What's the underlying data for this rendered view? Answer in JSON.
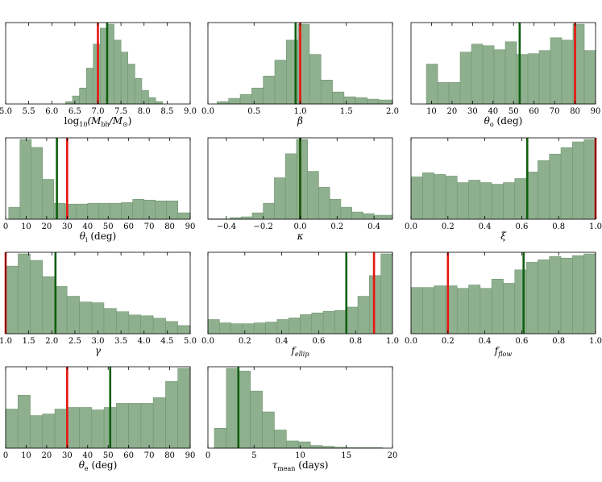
{
  "colors": {
    "bar_fill": "#8fb08f",
    "bar_edge": "#6f946f",
    "line_red": "#e8150f",
    "line_green": "#0f5f0f"
  },
  "chart_data": [
    {
      "type": "bar",
      "id": "mbh",
      "title": "",
      "xlabel": "log10(M_bh/M_sun)",
      "xlabel_parts": [
        "log",
        "10",
        "(M",
        "bh",
        "/M",
        "⊙",
        ")"
      ],
      "xlim": [
        5.0,
        9.0
      ],
      "xticks": [
        5.0,
        5.5,
        6.0,
        6.5,
        7.0,
        7.5,
        8.0,
        8.5,
        9.0
      ],
      "xtick_labels": [
        "5.0",
        "5.5",
        "6.0",
        "6.5",
        "7.0",
        "7.5",
        "8.0",
        "8.5",
        "9.0"
      ],
      "bin_edges": [
        6.3,
        6.45,
        6.6,
        6.75,
        6.9,
        7.05,
        7.2,
        7.35,
        7.5,
        7.65,
        7.8,
        7.95,
        8.1,
        8.25,
        8.4
      ],
      "values": [
        3,
        10,
        20,
        45,
        75,
        95,
        100,
        80,
        65,
        50,
        32,
        17,
        8,
        3
      ],
      "red_line": 7.0,
      "green_line": 7.2
    },
    {
      "type": "bar",
      "id": "beta",
      "xlabel": "β",
      "xlabel_parts": [
        "β"
      ],
      "xlim": [
        0.0,
        2.0
      ],
      "xticks": [
        0.0,
        0.5,
        1.0,
        1.5,
        2.0
      ],
      "xtick_labels": [
        "0.0",
        "0.5",
        "1.0",
        "1.5",
        "2.0"
      ],
      "bin_edges": [
        0.1,
        0.225,
        0.35,
        0.475,
        0.6,
        0.725,
        0.85,
        0.975,
        1.1,
        1.225,
        1.35,
        1.475,
        1.6,
        1.725,
        1.85,
        2.0
      ],
      "values": [
        3,
        7,
        12,
        20,
        35,
        55,
        80,
        100,
        62,
        30,
        15,
        9,
        8,
        6,
        5
      ],
      "red_line": 1.0,
      "green_line": 0.95
    },
    {
      "type": "bar",
      "id": "theta_o",
      "xlabel": "θ_o (deg)",
      "xlabel_parts": [
        "θ",
        "o",
        " (deg)"
      ],
      "xlim": [
        0,
        90
      ],
      "xticks": [
        10,
        20,
        30,
        40,
        50,
        60,
        70,
        80,
        90
      ],
      "xtick_labels": [
        "10",
        "20",
        "30",
        "40",
        "50",
        "60",
        "70",
        "80",
        "90"
      ],
      "bin_edges": [
        7.5,
        13,
        18.5,
        24,
        29.5,
        35,
        40.5,
        46,
        51.5,
        57,
        62.5,
        68,
        73.5,
        79,
        84.5,
        90
      ],
      "values": [
        50,
        27,
        27,
        65,
        75,
        73,
        68,
        78,
        62,
        63,
        67,
        83,
        80,
        100,
        67
      ],
      "red_line": 80,
      "green_line": 53
    },
    {
      "type": "bar",
      "id": "theta_i",
      "xlabel": "θ_i (deg)",
      "xlabel_parts": [
        "θ",
        "i",
        " (deg)"
      ],
      "xlim": [
        0,
        90
      ],
      "xticks": [
        0,
        10,
        20,
        30,
        40,
        50,
        60,
        70,
        80,
        90
      ],
      "xtick_labels": [
        "0",
        "10",
        "20",
        "30",
        "40",
        "50",
        "60",
        "70",
        "80",
        "90"
      ],
      "bin_edges": [
        1.5,
        7,
        12.5,
        18,
        23.5,
        29,
        34.5,
        40,
        45.5,
        51,
        56.5,
        62,
        67.5,
        73,
        78.5,
        84,
        90
      ],
      "values": [
        15,
        100,
        90,
        50,
        20,
        19,
        19,
        20,
        20,
        20,
        21,
        25,
        24,
        23,
        23,
        8
      ],
      "red_line": 30,
      "green_line": 25
    },
    {
      "type": "bar",
      "id": "kappa",
      "xlabel": "κ",
      "xlabel_parts": [
        "κ"
      ],
      "xlim": [
        -0.5,
        0.5
      ],
      "xticks": [
        -0.4,
        -0.2,
        0.0,
        0.2,
        0.4
      ],
      "xtick_labels": [
        "−0.4",
        "−0.2",
        "0.0",
        "0.2",
        "0.4"
      ],
      "bin_edges": [
        -0.5,
        -0.44,
        -0.38,
        -0.32,
        -0.26,
        -0.2,
        -0.14,
        -0.08,
        -0.02,
        0.04,
        0.1,
        0.16,
        0.22,
        0.28,
        0.34,
        0.4,
        0.5
      ],
      "values": [
        0.5,
        0.5,
        2,
        3,
        8,
        20,
        52,
        82,
        100,
        60,
        40,
        25,
        15,
        9,
        7,
        5
      ],
      "red_line": 0.0,
      "green_line": 0.0
    },
    {
      "type": "bar",
      "id": "xi",
      "xlabel": "ξ",
      "xlabel_parts": [
        "ξ"
      ],
      "xlim": [
        0.0,
        1.0
      ],
      "xticks": [
        0.0,
        0.2,
        0.4,
        0.6,
        0.8,
        1.0
      ],
      "xtick_labels": [
        "0.0",
        "0.2",
        "0.4",
        "0.6",
        "0.8",
        "1.0"
      ],
      "bin_edges": [
        0.0,
        0.0625,
        0.125,
        0.1875,
        0.25,
        0.3125,
        0.375,
        0.4375,
        0.5,
        0.5625,
        0.625,
        0.6875,
        0.75,
        0.8125,
        0.875,
        0.9375,
        1.0
      ],
      "values": [
        52,
        57,
        55,
        53,
        45,
        48,
        45,
        43,
        45,
        50,
        58,
        72,
        80,
        88,
        95,
        98
      ],
      "red_line": 1.0,
      "green_line": 0.63
    },
    {
      "type": "bar",
      "id": "gamma",
      "xlabel": "γ",
      "xlabel_parts": [
        "γ"
      ],
      "xlim": [
        1.0,
        5.0
      ],
      "xticks": [
        1.0,
        1.5,
        2.0,
        2.5,
        3.0,
        3.5,
        4.0,
        4.5,
        5.0
      ],
      "xtick_labels": [
        "1.0",
        "1.5",
        "2.0",
        "2.5",
        "3.0",
        "3.5",
        "4.0",
        "4.5",
        "5.0"
      ],
      "bin_edges": [
        1.0,
        1.27,
        1.53,
        1.8,
        2.07,
        2.33,
        2.6,
        2.87,
        3.13,
        3.4,
        3.67,
        3.93,
        4.2,
        4.47,
        4.73,
        5.0
      ],
      "values": [
        83,
        98,
        90,
        70,
        58,
        46,
        39,
        38,
        31,
        27,
        23,
        22,
        19,
        15,
        10
      ],
      "red_line": 1.0,
      "green_line": 2.08
    },
    {
      "type": "bar",
      "id": "f_ellip",
      "xlabel": "f_ellip",
      "xlabel_parts": [
        "f",
        "ellip"
      ],
      "xlim": [
        0.0,
        1.0
      ],
      "xticks": [
        0.0,
        0.2,
        0.4,
        0.6,
        0.8,
        1.0
      ],
      "xtick_labels": [
        "0.0",
        "0.2",
        "0.4",
        "0.6",
        "0.8",
        "1.0"
      ],
      "bin_edges": [
        0.0,
        0.0625,
        0.125,
        0.1875,
        0.25,
        0.3125,
        0.375,
        0.4375,
        0.5,
        0.5625,
        0.625,
        0.6875,
        0.75,
        0.8125,
        0.875,
        0.9375,
        1.0
      ],
      "values": [
        17,
        13,
        12,
        12,
        13,
        14,
        17,
        19,
        23,
        25,
        27,
        28,
        32,
        45,
        70,
        96
      ],
      "red_line": 0.9,
      "green_line": 0.75
    },
    {
      "type": "bar",
      "id": "f_flow",
      "xlabel": "f_flow",
      "xlabel_parts": [
        "f",
        "flow"
      ],
      "xlim": [
        0.0,
        1.0
      ],
      "xticks": [
        0.0,
        0.2,
        0.4,
        0.6,
        0.8,
        1.0
      ],
      "xtick_labels": [
        "0.0",
        "0.2",
        "0.4",
        "0.6",
        "0.8",
        "1.0"
      ],
      "bin_edges": [
        0.0,
        0.0625,
        0.125,
        0.1875,
        0.25,
        0.3125,
        0.375,
        0.4375,
        0.5,
        0.5625,
        0.625,
        0.6875,
        0.75,
        0.8125,
        0.875,
        0.9375,
        1.0
      ],
      "values": [
        55,
        55,
        57,
        57,
        54,
        58,
        54,
        65,
        60,
        76,
        85,
        88,
        92,
        90,
        93,
        95
      ],
      "red_line": 0.2,
      "green_line": 0.61
    },
    {
      "type": "bar",
      "id": "theta_e",
      "xlabel": "θ_e (deg)",
      "xlabel_parts": [
        "θ",
        "e",
        " (deg)"
      ],
      "xlim": [
        0,
        90
      ],
      "xticks": [
        0,
        10,
        20,
        30,
        40,
        50,
        60,
        70,
        80,
        90
      ],
      "xtick_labels": [
        "0",
        "10",
        "20",
        "30",
        "40",
        "50",
        "60",
        "70",
        "80",
        "90"
      ],
      "bin_edges": [
        0,
        6,
        12,
        18,
        24,
        30,
        36,
        42,
        48,
        54,
        60,
        66,
        72,
        78,
        84,
        90
      ],
      "values": [
        48,
        65,
        40,
        42,
        48,
        50,
        50,
        47,
        50,
        55,
        55,
        55,
        62,
        82,
        98
      ],
      "red_line": 30,
      "green_line": 51
    },
    {
      "type": "bar",
      "id": "tau_mean",
      "xlabel": "τ_mean (days)",
      "xlabel_parts": [
        "τ",
        "mean",
        " (days)"
      ],
      "xlim": [
        0,
        20
      ],
      "xticks": [
        0,
        5,
        10,
        15,
        20
      ],
      "xtick_labels": [
        "0",
        "5",
        "10",
        "15",
        "20"
      ],
      "bin_edges": [
        0.7,
        2.0,
        3.3,
        4.6,
        5.9,
        7.2,
        8.5,
        9.8,
        11.1,
        12.4,
        13.7,
        15.0,
        16.3,
        17.6,
        18.9
      ],
      "values": [
        22,
        88,
        85,
        63,
        40,
        20,
        8,
        7,
        3,
        2,
        1,
        0.5,
        0.5,
        0.5
      ],
      "red_line": null,
      "green_line": 3.3
    }
  ]
}
